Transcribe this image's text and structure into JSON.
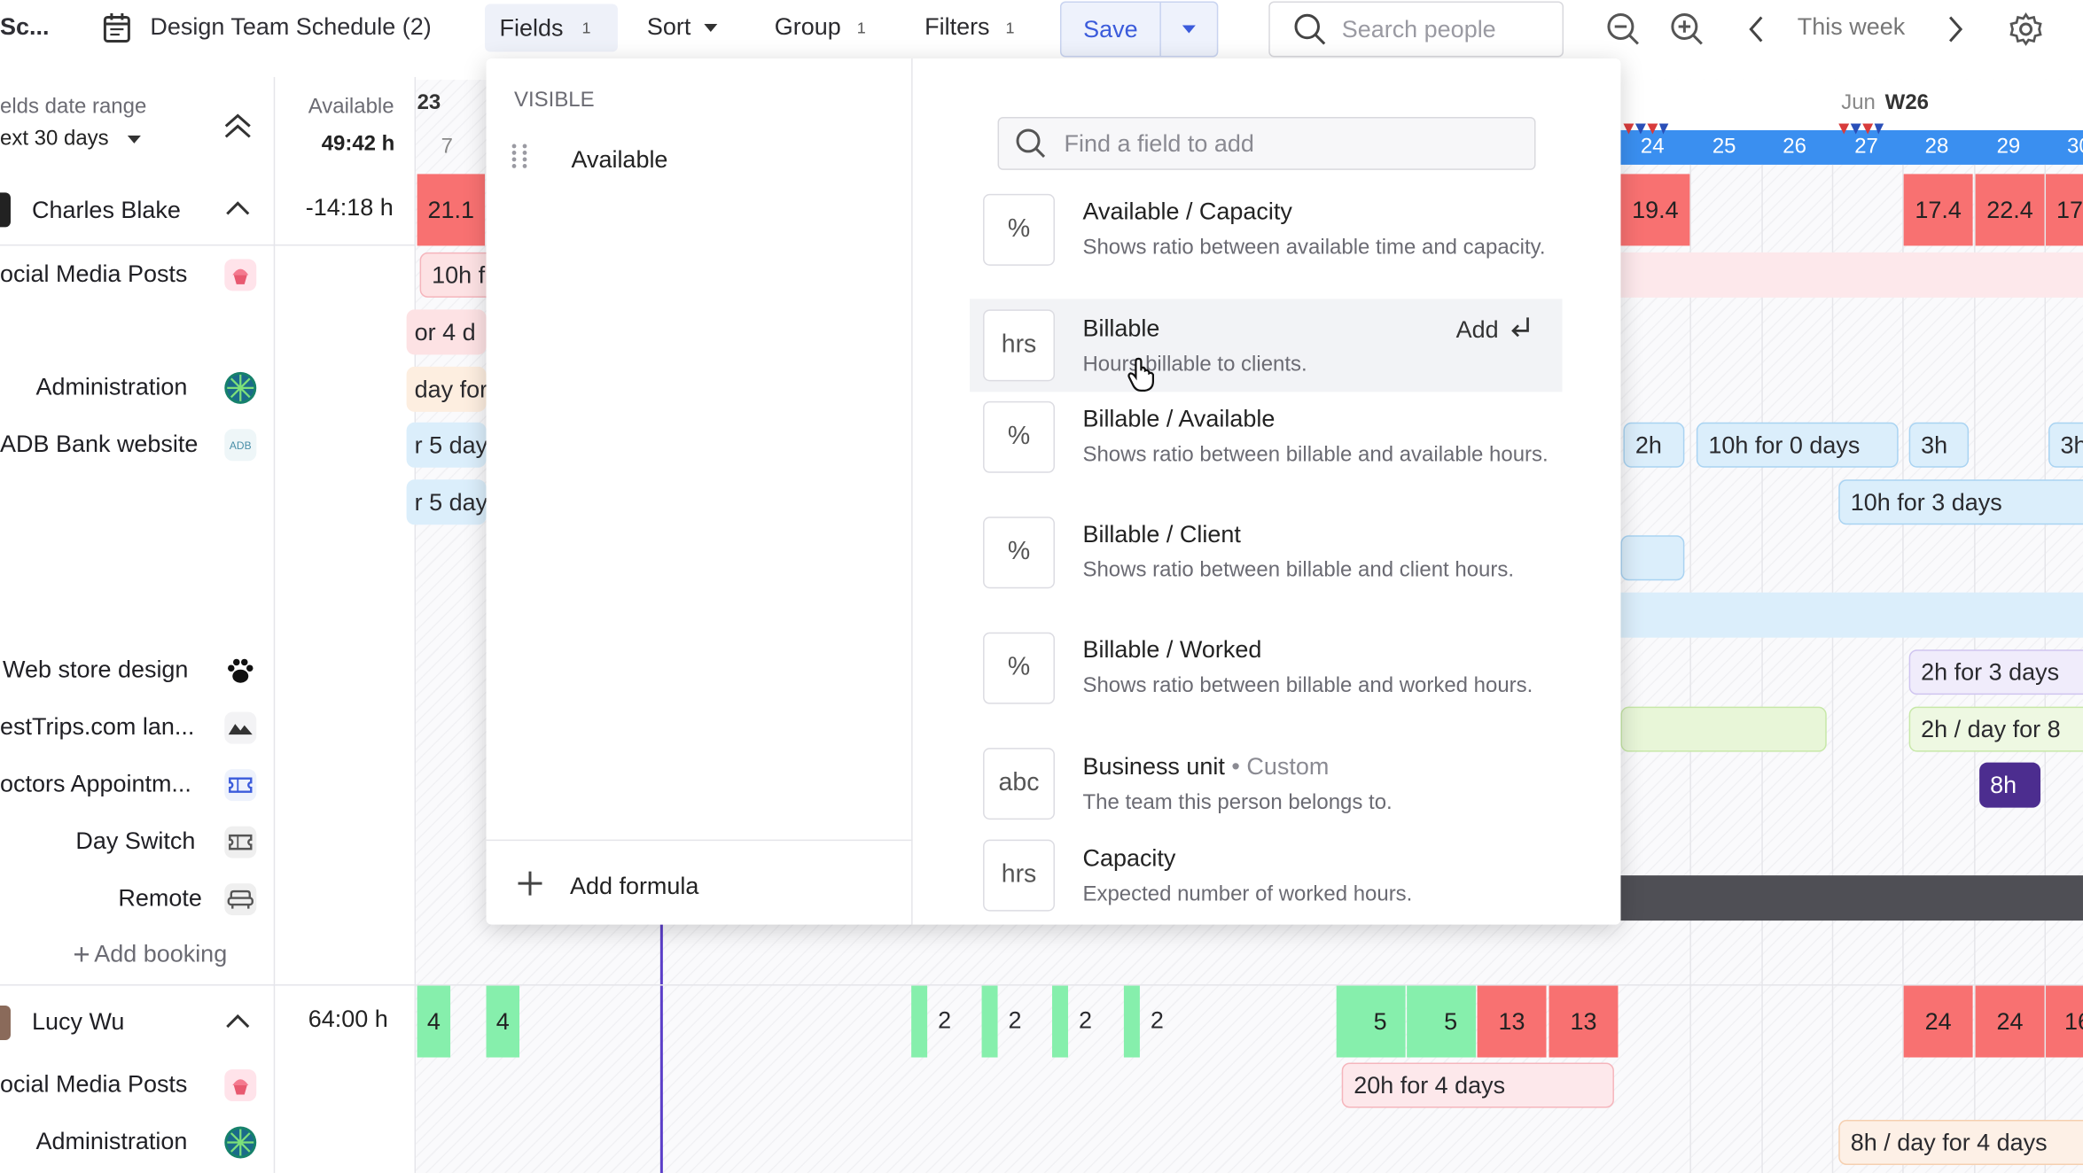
{
  "topbar": {
    "app_title": "Sc...",
    "schedule_name": "Design Team Schedule (2)",
    "fields_label": "Fields",
    "fields_count": "1",
    "sort_label": "Sort",
    "group_label": "Group",
    "group_count": "1",
    "filters_label": "Filters",
    "filters_count": "1",
    "save_label": "Save",
    "search_placeholder": "Search people",
    "week_label": "This week"
  },
  "left_header": {
    "range_label": "elds date range",
    "range_value": "ext 30 days",
    "available_label": "Available",
    "available_value": "49:42 h"
  },
  "calendar_header": {
    "first_date": "23",
    "first_day": "7",
    "month": "Jun",
    "week": "W26",
    "days": [
      "24",
      "25",
      "26",
      "27",
      "28",
      "29",
      "30"
    ]
  },
  "people": [
    {
      "name": "Charles Blake",
      "hours": "-14:18 h",
      "projects": [
        "ocial Media Posts",
        "or 4 d",
        "Administration",
        "ADB Bank website",
        "",
        "Web store design",
        "estTrips.com lan...",
        "octors Appointm...",
        "Day Switch",
        "Remote"
      ]
    },
    {
      "name": "Lucy Wu",
      "hours": "64:00 h",
      "projects": [
        "ocial Media Posts",
        "Administration"
      ]
    }
  ],
  "add_booking_label": "Add booking",
  "charles_row": {
    "first_cell": "21.1",
    "cells": [
      "19.4",
      "17.4",
      "22.4",
      "17"
    ]
  },
  "bookings": {
    "b1": "10h f",
    "b2": "or 4 d",
    "b3": "day for",
    "b4": "r 5 day",
    "b5": "r 5 day",
    "r1": "2h",
    "r2": "10h for 0 days",
    "r3": "3h",
    "r4": "3h",
    "r5": "10h for 3 days",
    "r6": "2h for 3 days",
    "r7": "2h / day for 8",
    "r8": "8h",
    "l1": "20h for 4 days",
    "l2": "8h / day for 4 days"
  },
  "lucy_row": {
    "cells": [
      "4",
      "4",
      "2",
      "2",
      "2",
      "2",
      "5",
      "5",
      "13",
      "13",
      "24",
      "24",
      "16"
    ]
  },
  "dropdown": {
    "visible_heading": "VISIBLE",
    "visible_fields": [
      "Available"
    ],
    "add_formula_label": "Add formula",
    "find_placeholder": "Find a field to add",
    "add_hint": "Add",
    "fields": [
      {
        "icon": "%",
        "title": "Available / Capacity",
        "desc": "Shows ratio between available time and capacity."
      },
      {
        "icon": "hrs",
        "title": "Billable",
        "desc": "Hours billable to clients."
      },
      {
        "icon": "%",
        "title": "Billable / Available",
        "desc": "Shows ratio between billable and available hours."
      },
      {
        "icon": "%",
        "title": "Billable / Client",
        "desc": "Shows ratio between billable and client hours."
      },
      {
        "icon": "%",
        "title": "Billable / Worked",
        "desc": "Shows ratio between billable and worked hours."
      },
      {
        "icon": "abc",
        "title": "Business unit",
        "title_suffix": "• Custom",
        "desc": "The team this person belongs to."
      },
      {
        "icon": "hrs",
        "title": "Capacity",
        "desc": "Expected number of worked hours."
      }
    ]
  },
  "colors": {
    "accent": "#3b5bdb",
    "red_cell": "#f87171",
    "green_cell": "#86efac",
    "purple_today": "#5b3ec8",
    "pink_booking": "#fde2e4",
    "blue_booking": "#dbeefb",
    "green_booking": "#e8f6d8"
  }
}
